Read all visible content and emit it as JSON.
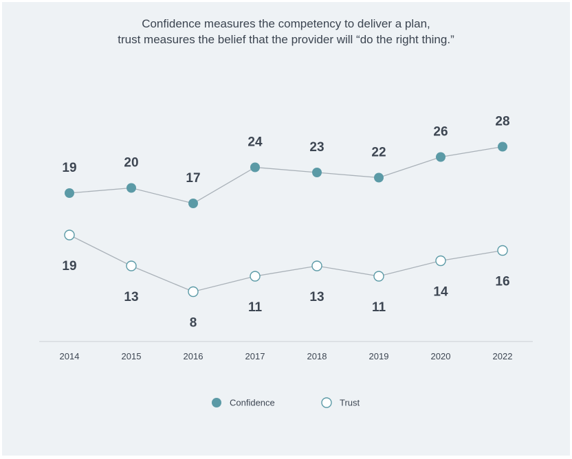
{
  "chart_data": {
    "type": "line",
    "title_lines": [
      "Confidence measures the competency to deliver a plan,",
      "trust measures the belief that the provider will “do the right thing.”"
    ],
    "x": [
      "2014",
      "2015",
      "2016",
      "2017",
      "2018",
      "2019",
      "2020",
      "2022"
    ],
    "series": [
      {
        "name": "Confidence",
        "values": [
          19,
          20,
          17,
          24,
          23,
          22,
          26,
          28
        ],
        "color": "#5b9aa6",
        "marker": "filled-circle"
      },
      {
        "name": "Trust",
        "values": [
          19,
          13,
          8,
          11,
          13,
          11,
          14,
          16
        ],
        "color": "#5b9aa6",
        "marker": "hollow-circle"
      }
    ],
    "line_color": "#a9b1b8",
    "axis_color": "#c9cfd4",
    "grid": false,
    "legend_position": "bottom-center"
  }
}
